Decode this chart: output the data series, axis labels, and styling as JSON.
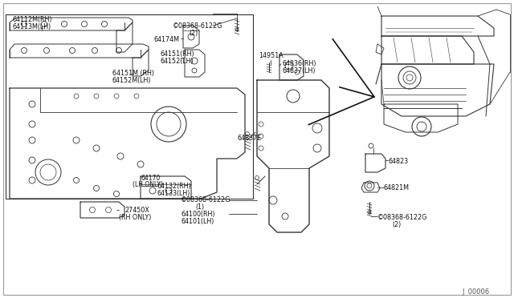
{
  "bg_color": "#ffffff",
  "line_color": "#333333",
  "text_color": "#111111",
  "page_code": "J  00006",
  "labels": {
    "top_left_part1": "64112M(RH)",
    "top_left_part2": "64113M(LH)",
    "screw_top_1": "©08368-6122G",
    "screw_top_2": "(2)",
    "bracket_174": "64174M",
    "brk151_1": "64151(RH)",
    "brk151_2": "64152(LH)",
    "brk151m_1": "64151M (RH)",
    "brk151m_2": "64152M(LH)",
    "box132_1": "64132(RH)",
    "box132_2": "64133(LH)",
    "sub170_1": "64170",
    "sub170_2": "(LH ONLY)",
    "sub27_1": "27450X",
    "sub27_2": "(RH ONLY)",
    "ctr_screw_1": "©08368-6122G",
    "ctr_screw_2": "(1)",
    "ctr_part_1": "64100(RH)",
    "ctr_part_2": "64101(LH)",
    "top_center": "14951A",
    "top_right1": "64836(RH)",
    "top_right2": "64837(LH)",
    "ctr_e": "64837E",
    "right1": "64823",
    "right2": "64821M",
    "rt_screw_1": "©08368-6122G",
    "rt_screw_2": "(2)"
  }
}
